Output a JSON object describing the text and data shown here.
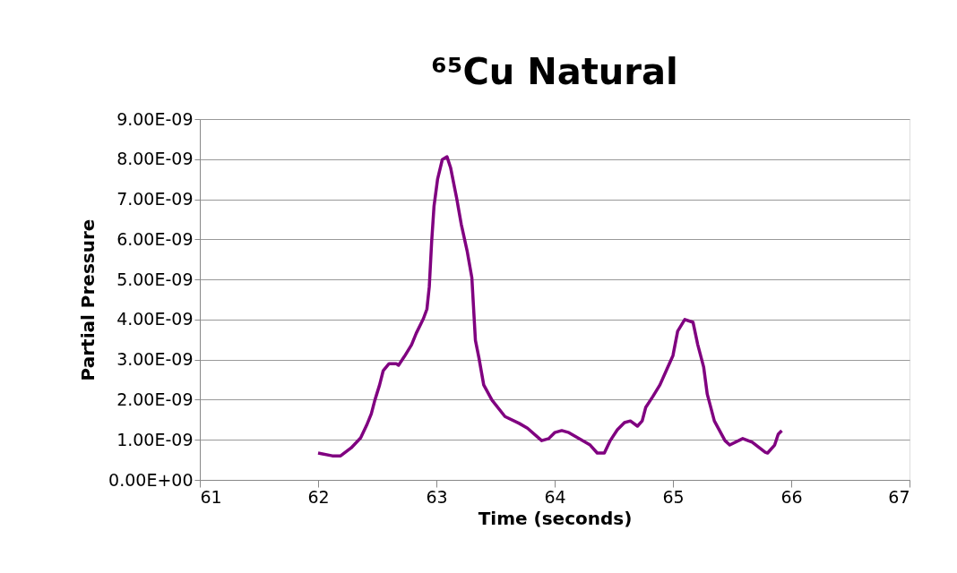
{
  "chart_data": {
    "type": "line",
    "title": "⁶⁵Cu Natural",
    "xlabel": "Time (seconds)",
    "ylabel": "Partial Pressure",
    "xlim": [
      61,
      67
    ],
    "xticks": [
      61,
      62,
      63,
      64,
      65,
      66,
      67
    ],
    "ylim": [
      0,
      9e-09
    ],
    "yticks": [
      {
        "value": 0,
        "label": "0.00E+00"
      },
      {
        "value": 1e-09,
        "label": "1.00E-09"
      },
      {
        "value": 2e-09,
        "label": "2.00E-09"
      },
      {
        "value": 3e-09,
        "label": "3.00E-09"
      },
      {
        "value": 4e-09,
        "label": "4.00E-09"
      },
      {
        "value": 5e-09,
        "label": "5.00E-09"
      },
      {
        "value": 6e-09,
        "label": "6.00E-09"
      },
      {
        "value": 7e-09,
        "label": "7.00E-09"
      },
      {
        "value": 8e-09,
        "label": "8.00E-09"
      },
      {
        "value": 9e-09,
        "label": "9.00E-09"
      }
    ],
    "grid": "y",
    "marker": "none",
    "line_style": "solid",
    "x": [
      62.0,
      62.12,
      62.19,
      62.28,
      62.36,
      62.41,
      62.45,
      62.48,
      62.52,
      62.55,
      62.6,
      62.66,
      62.68,
      62.73,
      62.79,
      62.83,
      62.89,
      62.92,
      62.94,
      62.96,
      62.98,
      63.01,
      63.05,
      63.09,
      63.12,
      63.17,
      63.21,
      63.26,
      63.3,
      63.33,
      63.36,
      63.4,
      63.47,
      63.58,
      63.7,
      63.77,
      63.89,
      63.95,
      64.0,
      64.06,
      64.12,
      64.3,
      64.36,
      64.42,
      64.47,
      64.53,
      64.59,
      64.64,
      64.7,
      64.74,
      64.77,
      64.83,
      64.89,
      64.95,
      65.0,
      65.04,
      65.1,
      65.17,
      65.21,
      65.26,
      65.29,
      65.35,
      65.44,
      65.48,
      65.59,
      65.67,
      65.78,
      65.8,
      65.86,
      65.89,
      65.92
    ],
    "series": [
      {
        "color": "#800080",
        "values": [
          6.7e-10,
          6e-10,
          6e-10,
          8e-10,
          1.05e-09,
          1.36e-09,
          1.65e-09,
          1.99e-09,
          2.37e-09,
          2.72e-09,
          2.9e-09,
          2.9e-09,
          2.86e-09,
          3.08e-09,
          3.37e-09,
          3.66e-09,
          4.02e-09,
          4.26e-09,
          4.82e-09,
          5.94e-09,
          6.83e-09,
          7.5e-09,
          7.99e-09,
          8.06e-09,
          7.79e-09,
          7.05e-09,
          6.38e-09,
          5.71e-09,
          5.04e-09,
          3.48e-09,
          3.04e-09,
          2.37e-09,
          1.99e-09,
          1.58e-09,
          1.41e-09,
          1.29e-09,
          9.8e-10,
          1.03e-09,
          1.18e-09,
          1.23e-09,
          1.18e-09,
          8.7e-10,
          6.7e-10,
          6.7e-10,
          9.8e-10,
          1.25e-09,
          1.43e-09,
          1.47e-09,
          1.34e-09,
          1.47e-09,
          1.81e-09,
          2.08e-09,
          2.37e-09,
          2.77e-09,
          3.1e-09,
          3.71e-09,
          4e-09,
          3.93e-09,
          3.37e-09,
          2.81e-09,
          2.14e-09,
          1.47e-09,
          9.8e-10,
          8.7e-10,
          1.03e-09,
          9.4e-10,
          6.9e-10,
          6.7e-10,
          8.7e-10,
          1.14e-09,
          1.23e-09
        ]
      }
    ]
  }
}
